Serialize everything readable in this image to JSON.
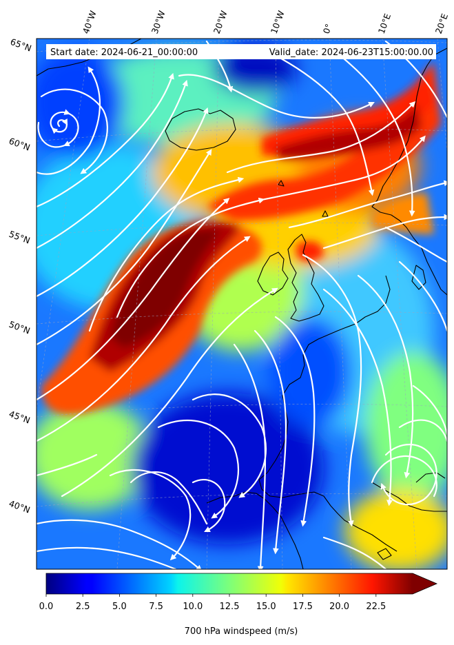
{
  "map": {
    "header": {
      "start_label": "Start date: 2024-06-21_00:00:00",
      "valid_label": "Valid_date: 2024-06-23T15:00:00.00"
    },
    "lon_labels": [
      "40°W",
      "30°W",
      "20°W",
      "10°W",
      "0°",
      "10°E",
      "20°E"
    ],
    "lat_labels": [
      "65°N",
      "60°N",
      "55°N",
      "50°N",
      "45°N",
      "40°N"
    ],
    "colorbar": {
      "label": "700 hPa windspeed (m/s)",
      "ticks": [
        "0.0",
        "2.5",
        "5.0",
        "7.5",
        "10.0",
        "12.5",
        "15.0",
        "17.5",
        "20.0",
        "22.5"
      ],
      "min": 0,
      "max": 25,
      "extend": "max",
      "colormap": "jet"
    },
    "field_colors": {
      "land_outline": "#000000",
      "streamlines": "#ffffff",
      "gridlines": "#9aa4c0"
    }
  }
}
